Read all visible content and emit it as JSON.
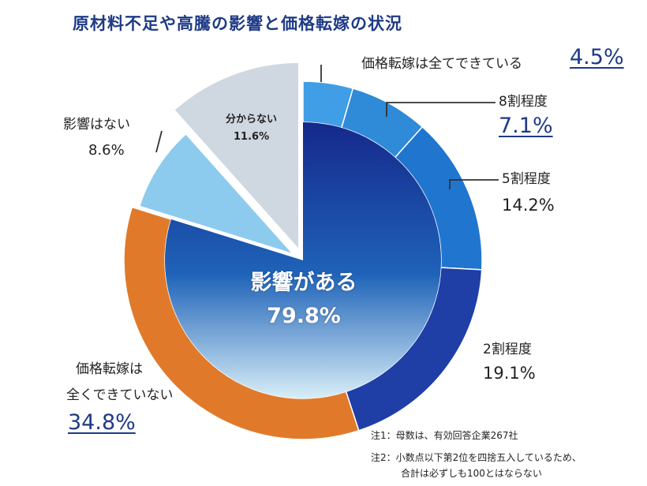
{
  "chart_data": {
    "type": "pie",
    "title": "原材料不足や高騰の影響と価格転嫁の状況",
    "outer_ring": [
      {
        "label": "価格転嫁は全てできている",
        "value": 4.5,
        "color": "#3f9ee5"
      },
      {
        "label": "8割程度",
        "value": 7.1,
        "color": "#2f8ad8"
      },
      {
        "label": "5割程度",
        "value": 14.2,
        "color": "#2075cf"
      },
      {
        "label": "2割程度",
        "value": 19.1,
        "color": "#1f3ea6"
      },
      {
        "label": "価格転嫁は全くできていない",
        "value": 34.8,
        "color": "#e07a2a"
      }
    ],
    "inner_pie": [
      {
        "label": "影響がある",
        "value": 79.8,
        "color": "#1a3f9a"
      },
      {
        "label": "影響はない",
        "value": 8.6,
        "color": "#8ccbee"
      },
      {
        "label": "分からない",
        "value": 11.6,
        "color": "#cfd8e0"
      }
    ]
  },
  "labels": {
    "l_all": {
      "name": "価格転嫁は全てできている",
      "pct": "4.5%"
    },
    "l_80": {
      "name": "8割程度",
      "pct": "7.1%"
    },
    "l_50": {
      "name": "5割程度",
      "pct": "14.2%"
    },
    "l_20": {
      "name": "2割程度",
      "pct": "19.1%"
    },
    "l_none_line1": "価格転嫁は",
    "l_none_line2": "全くできていない",
    "l_none_pct": "34.8%",
    "l_noeffect": {
      "name": "影響はない",
      "pct": "8.6%"
    },
    "l_unknown": {
      "name": "分からない",
      "pct": "11.6%"
    },
    "center": {
      "name": "影響がある",
      "pct": "79.8%"
    }
  },
  "notes": {
    "n1": "注1：母数は、有効回答企業267社",
    "n2a": "注2：小数点以下第2位を四捨五入しているため、",
    "n2b": "合計は必ずしも100とはならない"
  }
}
